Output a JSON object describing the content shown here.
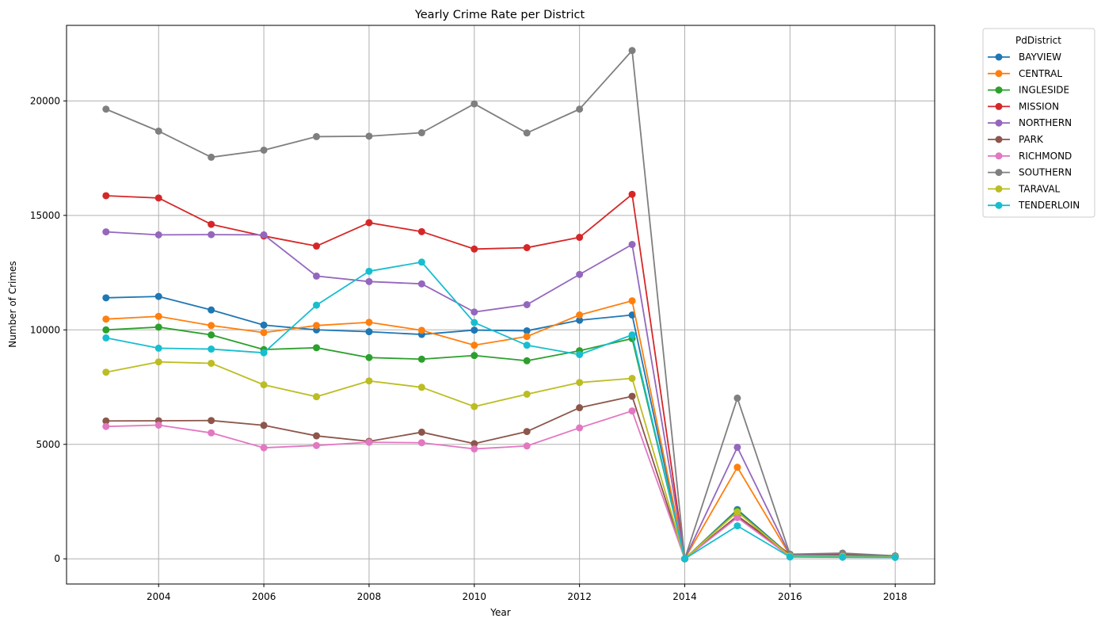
{
  "chart_data": {
    "type": "line",
    "title": "Yearly Crime Rate per District",
    "xlabel": "Year",
    "ylabel": "Number of Crimes",
    "xlim": [
      2002.25,
      2018.75
    ],
    "ylim": [
      -1100,
      23300
    ],
    "x_ticks": [
      2004,
      2006,
      2008,
      2010,
      2012,
      2014,
      2016,
      2018
    ],
    "y_ticks": [
      0,
      5000,
      10000,
      15000,
      20000
    ],
    "grid": true,
    "legend": {
      "title": "PdDistrict",
      "placement": "outside-right"
    },
    "x": [
      2003,
      2004,
      2005,
      2006,
      2007,
      2008,
      2009,
      2010,
      2011,
      2012,
      2013,
      2014,
      2015,
      2016,
      2017,
      2018
    ],
    "series": [
      {
        "name": "BAYVIEW",
        "color": "#1f77b4",
        "values": [
          11400,
          11460,
          10870,
          10210,
          10000,
          9920,
          9800,
          9990,
          9960,
          10420,
          10650,
          0,
          2150,
          150,
          140,
          100
        ]
      },
      {
        "name": "CENTRAL",
        "color": "#ff7f0e",
        "values": [
          10470,
          10590,
          10190,
          9880,
          10190,
          10330,
          9980,
          9330,
          9710,
          10650,
          11270,
          0,
          4000,
          150,
          140,
          100
        ]
      },
      {
        "name": "INGLESIDE",
        "color": "#2ca02c",
        "values": [
          10000,
          10120,
          9780,
          9140,
          9220,
          8790,
          8720,
          8880,
          8650,
          9090,
          9620,
          0,
          2100,
          120,
          110,
          90
        ]
      },
      {
        "name": "MISSION",
        "color": "#d62728",
        "values": [
          15860,
          15760,
          14610,
          14100,
          13660,
          14680,
          14290,
          13530,
          13590,
          14040,
          15920,
          0,
          1850,
          150,
          140,
          110
        ]
      },
      {
        "name": "NORTHERN",
        "color": "#9467bd",
        "values": [
          14280,
          14150,
          14160,
          14150,
          12350,
          12110,
          12010,
          10780,
          11100,
          12420,
          13730,
          0,
          4870,
          170,
          180,
          120
        ]
      },
      {
        "name": "PARK",
        "color": "#8c564b",
        "values": [
          6020,
          6030,
          6040,
          5830,
          5370,
          5130,
          5530,
          5030,
          5560,
          6600,
          7100,
          0,
          1880,
          200,
          200,
          120
        ]
      },
      {
        "name": "RICHMOND",
        "color": "#e377c2",
        "values": [
          5780,
          5840,
          5500,
          4850,
          4950,
          5090,
          5070,
          4800,
          4930,
          5720,
          6460,
          0,
          1800,
          100,
          100,
          80
        ]
      },
      {
        "name": "SOUTHERN",
        "color": "#7f7f7f",
        "values": [
          19640,
          18680,
          17540,
          17850,
          18440,
          18460,
          18610,
          19870,
          18600,
          19640,
          22200,
          0,
          7020,
          200,
          250,
          130
        ]
      },
      {
        "name": "TARAVAL",
        "color": "#bcbd22",
        "values": [
          8150,
          8600,
          8540,
          7600,
          7080,
          7770,
          7490,
          6650,
          7190,
          7700,
          7880,
          0,
          2050,
          120,
          110,
          80
        ]
      },
      {
        "name": "TENDERLOIN",
        "color": "#17becf",
        "values": [
          9650,
          9200,
          9160,
          9000,
          11080,
          12560,
          12960,
          10320,
          9330,
          8920,
          9780,
          0,
          1440,
          80,
          70,
          60
        ]
      }
    ]
  }
}
